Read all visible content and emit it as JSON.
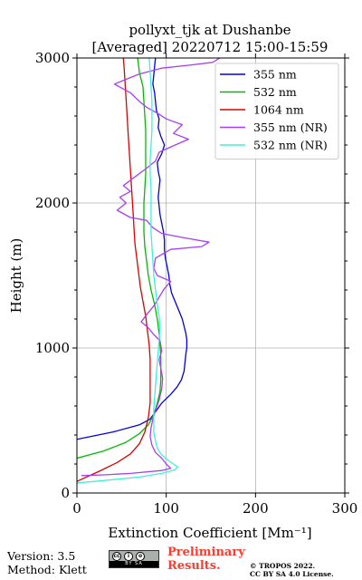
{
  "chart_data": {
    "type": "line",
    "title": "pollyxt_tjk at Dushanbe",
    "subtitle": "[Averaged] 20220712 15:00-15:59",
    "xlabel": "Extinction Coefficient [Mm⁻¹]",
    "ylabel": "Height (m)",
    "xlim": [
      0,
      300
    ],
    "ylim": [
      0,
      3000
    ],
    "xticks": [
      "0",
      "100",
      "200",
      "300"
    ],
    "yticks": [
      "0",
      "1000",
      "2000",
      "3000"
    ],
    "grid": true,
    "legend_position": "top-right",
    "series": [
      {
        "name": "355 nm",
        "color": "#0000dd",
        "points": [
          [
            0,
            370
          ],
          [
            40,
            420
          ],
          [
            70,
            470
          ],
          [
            82,
            510
          ],
          [
            88,
            560
          ],
          [
            95,
            620
          ],
          [
            105,
            680
          ],
          [
            112,
            730
          ],
          [
            117,
            780
          ],
          [
            120,
            840
          ],
          [
            121,
            900
          ],
          [
            122,
            960
          ],
          [
            123,
            1000
          ],
          [
            123,
            1060
          ],
          [
            122,
            1100
          ],
          [
            120,
            1150
          ],
          [
            118,
            1200
          ],
          [
            114,
            1260
          ],
          [
            110,
            1320
          ],
          [
            106,
            1380
          ],
          [
            104,
            1440
          ],
          [
            103,
            1500
          ],
          [
            101,
            1560
          ],
          [
            99,
            1620
          ],
          [
            98,
            1680
          ],
          [
            98,
            1740
          ],
          [
            97,
            1800
          ],
          [
            95,
            1860
          ],
          [
            93,
            1920
          ],
          [
            92,
            1980
          ],
          [
            91,
            2040
          ],
          [
            92,
            2100
          ],
          [
            93,
            2160
          ],
          [
            91,
            2220
          ],
          [
            90,
            2280
          ],
          [
            95,
            2340
          ],
          [
            98,
            2400
          ],
          [
            94,
            2460
          ],
          [
            91,
            2520
          ],
          [
            92,
            2580
          ],
          [
            89,
            2640
          ],
          [
            88,
            2700
          ],
          [
            87,
            2760
          ],
          [
            85,
            2820
          ],
          [
            86,
            2880
          ],
          [
            87,
            2940
          ],
          [
            88,
            3000
          ]
        ]
      },
      {
        "name": "532 nm",
        "color": "#00bb00",
        "points": [
          [
            0,
            240
          ],
          [
            30,
            290
          ],
          [
            55,
            350
          ],
          [
            70,
            410
          ],
          [
            80,
            470
          ],
          [
            86,
            540
          ],
          [
            90,
            620
          ],
          [
            93,
            700
          ],
          [
            94,
            780
          ],
          [
            94,
            860
          ],
          [
            94,
            940
          ],
          [
            93,
            1020
          ],
          [
            92,
            1100
          ],
          [
            90,
            1200
          ],
          [
            87,
            1300
          ],
          [
            83,
            1400
          ],
          [
            80,
            1500
          ],
          [
            78,
            1600
          ],
          [
            76,
            1700
          ],
          [
            75,
            1800
          ],
          [
            75,
            1900
          ],
          [
            75,
            2000
          ],
          [
            76,
            2100
          ],
          [
            77,
            2200
          ],
          [
            77,
            2300
          ],
          [
            77,
            2400
          ],
          [
            77,
            2500
          ],
          [
            76,
            2600
          ],
          [
            75,
            2700
          ],
          [
            74,
            2800
          ],
          [
            70,
            2900
          ],
          [
            68,
            3000
          ]
        ]
      },
      {
        "name": "1064 nm",
        "color": "#dd0000",
        "points": [
          [
            0,
            80
          ],
          [
            25,
            150
          ],
          [
            45,
            210
          ],
          [
            60,
            270
          ],
          [
            70,
            340
          ],
          [
            76,
            420
          ],
          [
            80,
            520
          ],
          [
            82,
            620
          ],
          [
            82,
            720
          ],
          [
            82,
            820
          ],
          [
            82,
            920
          ],
          [
            81,
            1020
          ],
          [
            79,
            1120
          ],
          [
            77,
            1220
          ],
          [
            74,
            1320
          ],
          [
            71,
            1420
          ],
          [
            69,
            1520
          ],
          [
            67,
            1620
          ],
          [
            65,
            1720
          ],
          [
            64,
            1820
          ],
          [
            63,
            1920
          ],
          [
            62,
            2020
          ],
          [
            61,
            2120
          ],
          [
            60,
            2220
          ],
          [
            59,
            2320
          ],
          [
            58,
            2420
          ],
          [
            57,
            2520
          ],
          [
            56,
            2620
          ],
          [
            55,
            2720
          ],
          [
            54,
            2820
          ],
          [
            53,
            2920
          ],
          [
            52,
            3000
          ]
        ]
      },
      {
        "name": "355 nm (NR)",
        "color": "#a640f0",
        "points": [
          [
            5,
            120
          ],
          [
            30,
            125
          ],
          [
            60,
            135
          ],
          [
            95,
            155
          ],
          [
            105,
            170
          ],
          [
            100,
            200
          ],
          [
            95,
            240
          ],
          [
            88,
            280
          ],
          [
            84,
            330
          ],
          [
            82,
            390
          ],
          [
            83,
            450
          ],
          [
            85,
            510
          ],
          [
            88,
            570
          ],
          [
            92,
            640
          ],
          [
            95,
            720
          ],
          [
            96,
            790
          ],
          [
            94,
            860
          ],
          [
            92,
            920
          ],
          [
            95,
            980
          ],
          [
            93,
            1050
          ],
          [
            85,
            1100
          ],
          [
            80,
            1140
          ],
          [
            72,
            1180
          ],
          [
            78,
            1230
          ],
          [
            86,
            1290
          ],
          [
            92,
            1350
          ],
          [
            98,
            1410
          ],
          [
            105,
            1460
          ],
          [
            90,
            1500
          ],
          [
            86,
            1550
          ],
          [
            88,
            1620
          ],
          [
            105,
            1680
          ],
          [
            140,
            1700
          ],
          [
            148,
            1730
          ],
          [
            120,
            1760
          ],
          [
            95,
            1790
          ],
          [
            85,
            1830
          ],
          [
            78,
            1880
          ],
          [
            60,
            1900
          ],
          [
            45,
            1950
          ],
          [
            55,
            2000
          ],
          [
            48,
            2040
          ],
          [
            60,
            2080
          ],
          [
            52,
            2120
          ],
          [
            65,
            2180
          ],
          [
            78,
            2240
          ],
          [
            88,
            2290
          ],
          [
            92,
            2350
          ],
          [
            110,
            2400
          ],
          [
            125,
            2440
          ],
          [
            108,
            2480
          ],
          [
            118,
            2540
          ],
          [
            100,
            2580
          ],
          [
            90,
            2620
          ],
          [
            78,
            2660
          ],
          [
            70,
            2700
          ],
          [
            60,
            2760
          ],
          [
            42,
            2820
          ],
          [
            58,
            2860
          ],
          [
            70,
            2890
          ],
          [
            95,
            2930
          ],
          [
            125,
            2950
          ],
          [
            152,
            2970
          ],
          [
            160,
            3000
          ]
        ]
      },
      {
        "name": "532 nm (NR)",
        "color": "#40f0d8",
        "points": [
          [
            0,
            70
          ],
          [
            20,
            80
          ],
          [
            45,
            95
          ],
          [
            70,
            110
          ],
          [
            95,
            135
          ],
          [
            110,
            160
          ],
          [
            113,
            180
          ],
          [
            108,
            200
          ],
          [
            100,
            235
          ],
          [
            94,
            270
          ],
          [
            90,
            310
          ],
          [
            88,
            360
          ],
          [
            86,
            420
          ],
          [
            86,
            500
          ],
          [
            86,
            580
          ],
          [
            87,
            660
          ],
          [
            88,
            740
          ],
          [
            89,
            820
          ],
          [
            90,
            900
          ],
          [
            91,
            980
          ],
          [
            92,
            1060
          ],
          [
            93,
            1140
          ],
          [
            92,
            1220
          ],
          [
            90,
            1300
          ],
          [
            88,
            1400
          ],
          [
            86,
            1500
          ],
          [
            85,
            1600
          ],
          [
            84,
            1700
          ],
          [
            83,
            1800
          ],
          [
            83,
            1900
          ],
          [
            83,
            2000
          ],
          [
            83,
            2100
          ],
          [
            82,
            2200
          ],
          [
            82,
            2300
          ],
          [
            83,
            2400
          ],
          [
            84,
            2500
          ],
          [
            84,
            2600
          ],
          [
            84,
            2700
          ],
          [
            83,
            2800
          ],
          [
            82,
            2900
          ],
          [
            81,
            3000
          ]
        ]
      }
    ]
  },
  "footer": {
    "version": "Version: 3.5",
    "method": "Method: Klett",
    "cc_label": "BY   SA",
    "preliminary_line1": "Preliminary",
    "preliminary_line2": "Results.",
    "copyright_line1": "© TROPOS 2022.",
    "copyright_line2": "CC BY SA 4.0 License."
  }
}
